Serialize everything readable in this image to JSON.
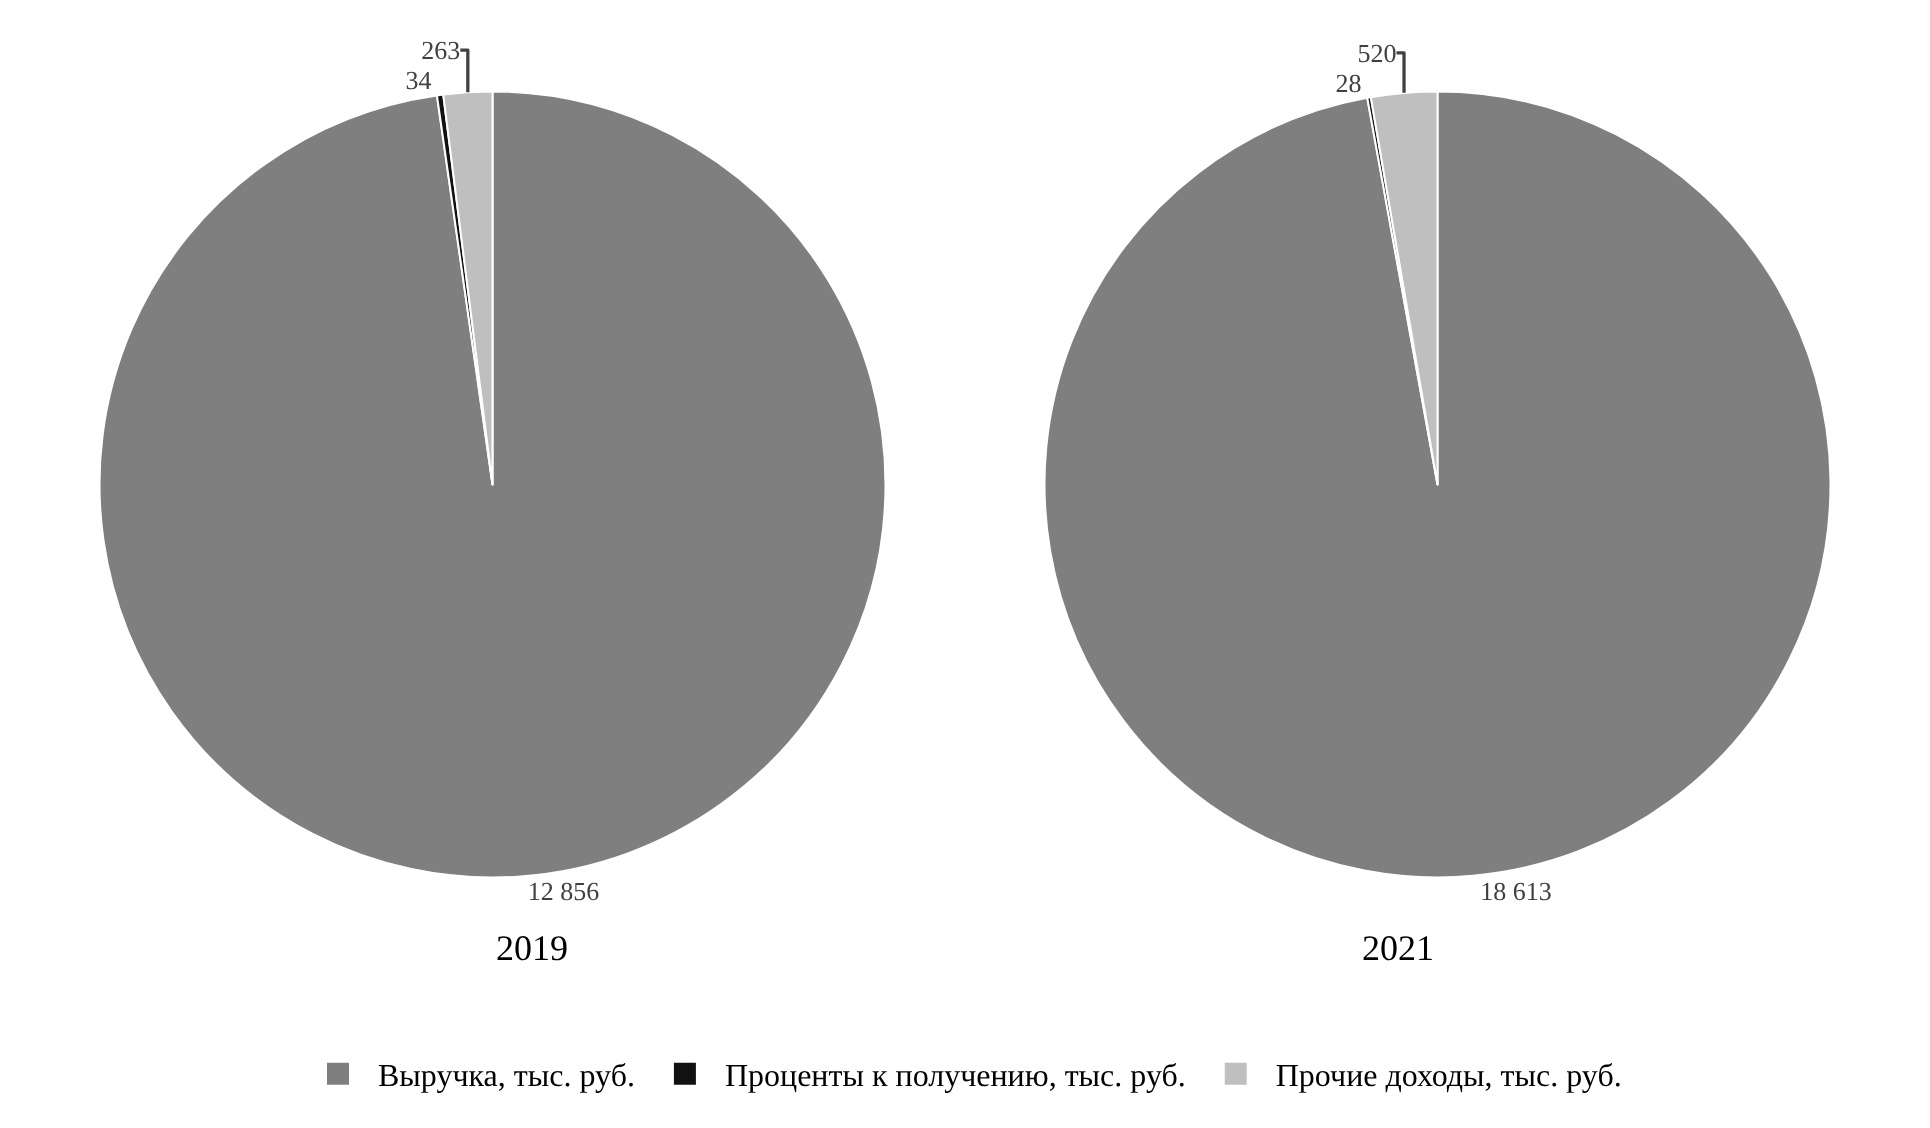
{
  "chart_data": [
    {
      "type": "pie",
      "title": "2019",
      "categories": [
        "Выручка, тыс. руб.",
        "Проценты к получению, тыс. руб.",
        "Прочие доходы, тыс. руб."
      ],
      "values": [
        12856,
        34,
        263
      ],
      "value_labels": [
        "12 856",
        "34",
        "263"
      ],
      "colors": [
        "#7f7f7f",
        "#111111",
        "#bfbfbf"
      ],
      "legend": "bottom"
    },
    {
      "type": "pie",
      "title": "2021",
      "categories": [
        null,
        null,
        null
      ],
      "values": [
        18613,
        28,
        520
      ],
      "value_labels": [
        "18 613",
        "28",
        "520"
      ],
      "colors": [
        "#7f7f7f",
        "#111111",
        "#bfbfbf"
      ]
    }
  ]
}
